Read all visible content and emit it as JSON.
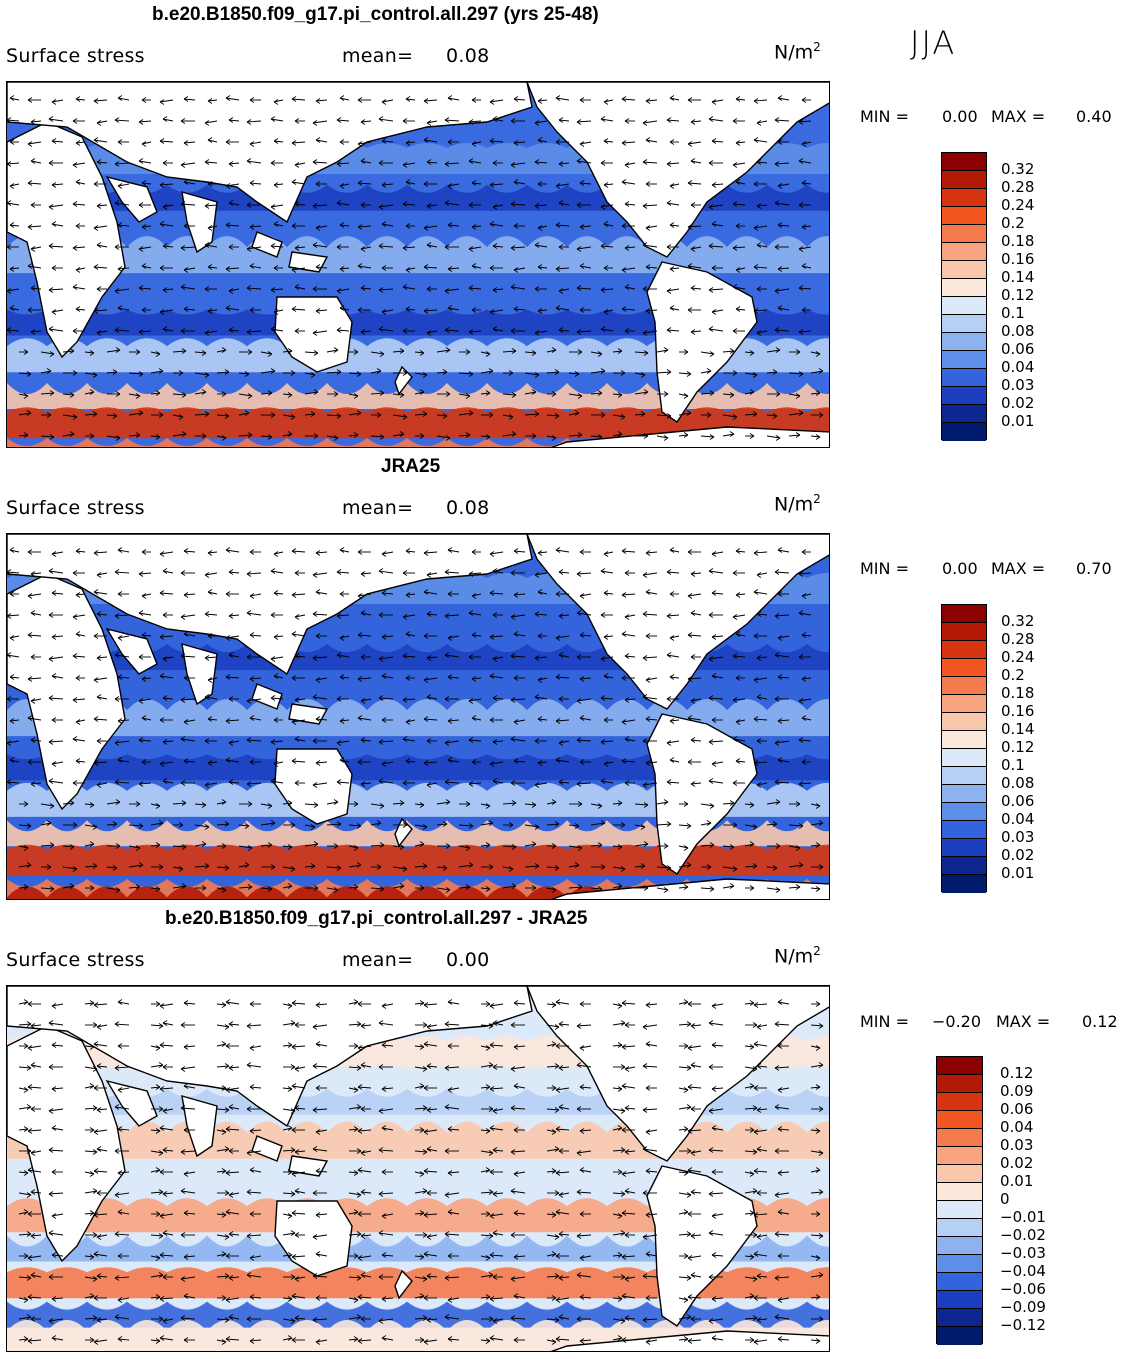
{
  "season": "JJA",
  "units_base": "N/m",
  "units_exp": "2",
  "panels": [
    {
      "title": "b.e20.B1850.f09_g17.pi_control.all.297 (yrs 25-48)",
      "variable": "Surface stress",
      "mean_label": "mean=",
      "mean_value": "0.08",
      "min_label": "MIN =",
      "min_value": "0.00",
      "max_label": "MAX =",
      "max_value": "0.40",
      "colorbar_labels": [
        "0.32",
        "0.28",
        "0.24",
        "0.2",
        "0.18",
        "0.16",
        "0.14",
        "0.12",
        "0.1",
        "0.08",
        "0.06",
        "0.04",
        "0.03",
        "0.02",
        "0.01"
      ]
    },
    {
      "title": "JRA25",
      "variable": "Surface stress",
      "mean_label": "mean=",
      "mean_value": "0.08",
      "min_label": "MIN =",
      "min_value": "0.00",
      "max_label": "MAX =",
      "max_value": "0.70",
      "colorbar_labels": [
        "0.32",
        "0.28",
        "0.24",
        "0.2",
        "0.18",
        "0.16",
        "0.14",
        "0.12",
        "0.1",
        "0.08",
        "0.06",
        "0.04",
        "0.03",
        "0.02",
        "0.01"
      ]
    },
    {
      "title": "b.e20.B1850.f09_g17.pi_control.all.297 - JRA25",
      "variable": "Surface stress",
      "mean_label": "mean=",
      "mean_value": "0.00",
      "min_label": "MIN =",
      "min_value": "−0.20",
      "max_label": "MAX =",
      "max_value": "0.12",
      "colorbar_labels": [
        "0.12",
        "0.09",
        "0.06",
        "0.04",
        "0.03",
        "0.02",
        "0.01",
        "0",
        "−0.01",
        "−0.02",
        "−0.03",
        "−0.04",
        "−0.06",
        "−0.09",
        "−0.12"
      ]
    }
  ],
  "colors": {
    "abs_scale": [
      "#8b0000",
      "#b21a06",
      "#d73510",
      "#f25520",
      "#f57a4c",
      "#f7a47f",
      "#f9c8ac",
      "#fde8dc",
      "#dce9f9",
      "#b5cff5",
      "#8cb3f0",
      "#5e8fe8",
      "#3464dc",
      "#1c3fc0",
      "#0e2690",
      "#001a6e"
    ],
    "diff_scale": [
      "#8b0000",
      "#b21a06",
      "#d73510",
      "#f25520",
      "#f57a4c",
      "#f7a47f",
      "#f9c8ac",
      "#fde8dc",
      "#dce9f9",
      "#b5cff5",
      "#8cb3f0",
      "#5e8fe8",
      "#3464dc",
      "#1c3fc0",
      "#0e2690",
      "#001a6e"
    ],
    "land": "#ffffff",
    "coast": "#000000"
  },
  "icons": {
    "map_canvas": "global-map-with-stress-vectors"
  }
}
